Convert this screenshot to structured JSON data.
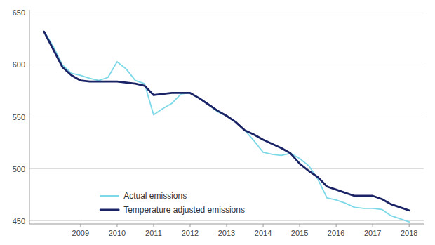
{
  "chart_data": {
    "type": "line",
    "x": [
      2008.0,
      2008.25,
      2008.5,
      2008.75,
      2009.0,
      2009.25,
      2009.5,
      2009.75,
      2010.0,
      2010.25,
      2010.5,
      2010.75,
      2011.0,
      2011.25,
      2011.5,
      2011.75,
      2012.0,
      2012.25,
      2012.5,
      2012.75,
      2013.0,
      2013.25,
      2013.5,
      2013.75,
      2014.0,
      2014.25,
      2014.5,
      2014.75,
      2015.0,
      2015.25,
      2015.5,
      2015.75,
      2016.0,
      2016.25,
      2016.5,
      2016.75,
      2017.0,
      2017.25,
      2017.5,
      2017.75,
      2018.0
    ],
    "series": [
      {
        "name": "Actual emissions",
        "color": "#7DD8E8",
        "values": [
          632,
          618,
          600,
          592,
          590,
          587,
          585,
          588,
          603,
          596,
          585,
          582,
          552,
          558,
          563,
          572,
          573,
          568,
          562,
          555,
          551,
          545,
          537,
          527,
          516,
          514,
          513,
          515,
          510,
          503,
          490,
          472,
          470,
          467,
          463,
          462,
          462,
          461,
          455,
          452,
          449
        ]
      },
      {
        "name": "Temperature adjusted emissions",
        "color": "#1A2366",
        "values": [
          632,
          615,
          598,
          590,
          585,
          584,
          584,
          584,
          584,
          583,
          582,
          580,
          571,
          572,
          573,
          573,
          573,
          568,
          562,
          556,
          551,
          545,
          537,
          533,
          528,
          524,
          520,
          515,
          505,
          498,
          492,
          483,
          480,
          477,
          474,
          474,
          474,
          471,
          466,
          463,
          460
        ]
      }
    ],
    "xlim": [
      2007.6,
      2018.4
    ],
    "xticks": [
      2009,
      2010,
      2011,
      2012,
      2013,
      2014,
      2015,
      2016,
      2017,
      2018
    ],
    "ylim": [
      447,
      653
    ],
    "yticks": [
      450,
      500,
      550,
      600,
      650
    ],
    "grid": true,
    "legend": "lower left"
  }
}
